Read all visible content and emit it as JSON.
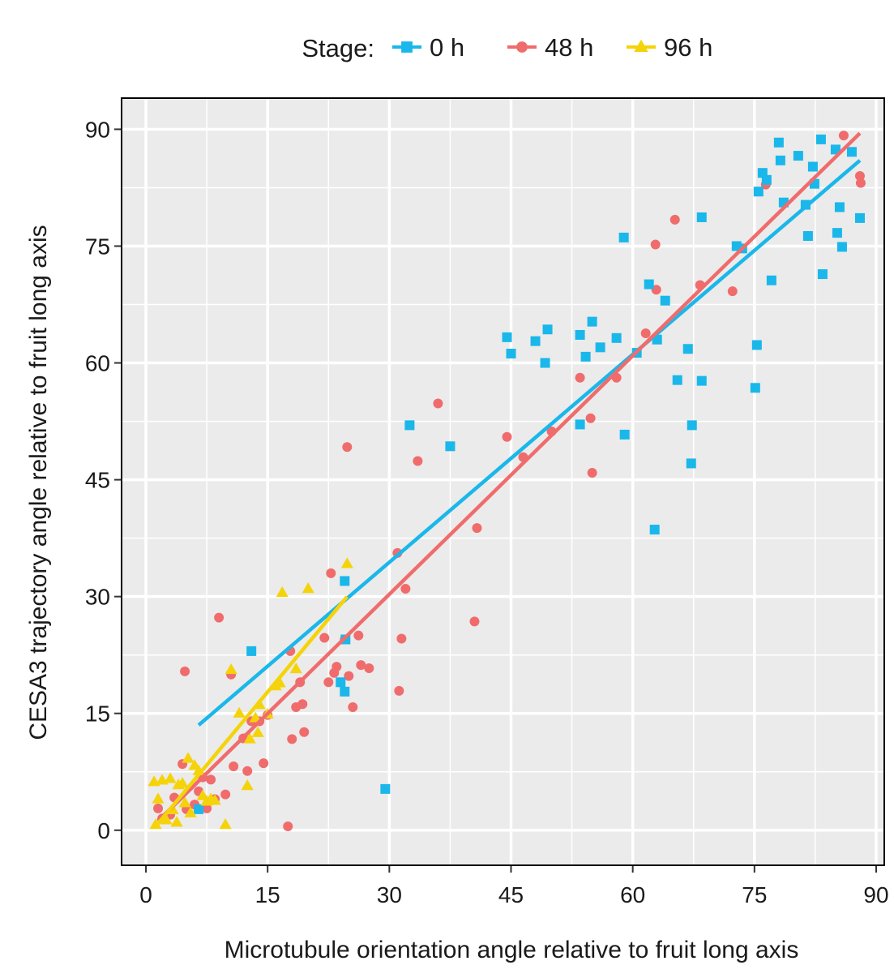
{
  "chart_data": {
    "type": "scatter",
    "xlabel": "Microtubule orientation angle relative to fruit long axis",
    "ylabel": "CESA3 trajectory angle relative to fruit long axis",
    "xlim": [
      -3,
      91
    ],
    "ylim": [
      -4.5,
      94
    ],
    "xticks": [
      0,
      15,
      30,
      45,
      60,
      75,
      90
    ],
    "yticks": [
      0,
      15,
      30,
      45,
      60,
      75,
      90
    ],
    "grid": true,
    "legend": {
      "title": "Stage:",
      "position": "top"
    },
    "colors": {
      "panel_bg": "#ebebeb",
      "grid": "#ffffff"
    },
    "series": [
      {
        "name": "0 h",
        "color": "#1ab7ea",
        "marker": "square",
        "fit": [
          [
            6.5,
            13.5
          ],
          [
            88,
            86
          ]
        ],
        "points": [
          [
            6.5,
            2.7
          ],
          [
            13,
            23
          ],
          [
            24,
            19
          ],
          [
            24.5,
            17.8
          ],
          [
            24.6,
            24.5
          ],
          [
            24.5,
            32
          ],
          [
            29.5,
            5.3
          ],
          [
            32.5,
            52
          ],
          [
            37.5,
            49.3
          ],
          [
            44.5,
            63.3
          ],
          [
            45,
            61.2
          ],
          [
            48,
            62.8
          ],
          [
            49.5,
            64.3
          ],
          [
            49.2,
            60
          ],
          [
            53.5,
            63.6
          ],
          [
            53.5,
            52.1
          ],
          [
            54.2,
            60.8
          ],
          [
            55,
            65.3
          ],
          [
            56,
            62
          ],
          [
            58,
            63.2
          ],
          [
            59,
            50.8
          ],
          [
            58.9,
            76.1
          ],
          [
            62,
            70.1
          ],
          [
            62.7,
            38.6
          ],
          [
            63,
            63
          ],
          [
            60.5,
            61.3
          ],
          [
            64,
            68
          ],
          [
            65.5,
            57.8
          ],
          [
            66.8,
            61.8
          ],
          [
            67.2,
            47.1
          ],
          [
            67.3,
            52
          ],
          [
            68.5,
            57.7
          ],
          [
            68.5,
            78.7
          ],
          [
            72.8,
            75
          ],
          [
            73.5,
            74.7
          ],
          [
            75.1,
            56.8
          ],
          [
            75.3,
            62.3
          ],
          [
            75.5,
            82
          ],
          [
            76,
            84.4
          ],
          [
            76.5,
            83.5
          ],
          [
            77.1,
            70.6
          ],
          [
            78,
            88.3
          ],
          [
            78.2,
            86
          ],
          [
            78.6,
            80.6
          ],
          [
            80.4,
            86.6
          ],
          [
            81.3,
            80.3
          ],
          [
            81.6,
            76.3
          ],
          [
            82.2,
            85.2
          ],
          [
            82.4,
            83
          ],
          [
            83.2,
            88.7
          ],
          [
            83.4,
            71.4
          ],
          [
            85,
            87.4
          ],
          [
            85.2,
            76.7
          ],
          [
            85.5,
            80
          ],
          [
            85.8,
            74.9
          ],
          [
            87,
            87.1
          ],
          [
            88,
            78.6
          ]
        ]
      },
      {
        "name": "48 h",
        "color": "#f06c6c",
        "marker": "circle",
        "fit": [
          [
            1.5,
            1.2
          ],
          [
            88,
            89.5
          ]
        ],
        "points": [
          [
            1.5,
            2.8
          ],
          [
            2,
            1.5
          ],
          [
            3,
            2
          ],
          [
            3.5,
            4.2
          ],
          [
            4.5,
            8.5
          ],
          [
            4.8,
            20.4
          ],
          [
            5,
            2.7
          ],
          [
            6,
            3.3
          ],
          [
            6.5,
            5
          ],
          [
            7,
            6.8
          ],
          [
            7.5,
            2.8
          ],
          [
            8,
            6.5
          ],
          [
            8.5,
            4
          ],
          [
            9,
            27.3
          ],
          [
            9.8,
            4.6
          ],
          [
            10.5,
            20
          ],
          [
            10.8,
            8.2
          ],
          [
            12,
            11.8
          ],
          [
            12.5,
            7.6
          ],
          [
            13,
            14
          ],
          [
            14,
            14
          ],
          [
            14.5,
            8.6
          ],
          [
            15,
            14.8
          ],
          [
            17.5,
            0.5
          ],
          [
            17.8,
            23
          ],
          [
            18,
            11.7
          ],
          [
            18.5,
            15.8
          ],
          [
            19,
            19
          ],
          [
            19.3,
            16.2
          ],
          [
            19.5,
            12.6
          ],
          [
            22,
            24.7
          ],
          [
            22.5,
            19
          ],
          [
            22.8,
            33
          ],
          [
            23.2,
            20.2
          ],
          [
            23.5,
            21
          ],
          [
            24.5,
            24.5
          ],
          [
            25,
            19.8
          ],
          [
            25.5,
            15.8
          ],
          [
            24.8,
            49.2
          ],
          [
            26.2,
            25
          ],
          [
            26.5,
            21.2
          ],
          [
            27.5,
            20.8
          ],
          [
            31,
            35.6
          ],
          [
            31.2,
            17.9
          ],
          [
            31.5,
            24.6
          ],
          [
            32,
            31
          ],
          [
            33.5,
            47.4
          ],
          [
            36,
            54.8
          ],
          [
            40.5,
            26.8
          ],
          [
            40.8,
            38.8
          ],
          [
            44.5,
            50.5
          ],
          [
            46.5,
            47.9
          ],
          [
            50,
            51.2
          ],
          [
            53.5,
            58.1
          ],
          [
            54.8,
            52.9
          ],
          [
            55,
            45.9
          ],
          [
            58,
            58.1
          ],
          [
            61.6,
            63.8
          ],
          [
            62.8,
            75.2
          ],
          [
            62.9,
            69.4
          ],
          [
            65.2,
            78.4
          ],
          [
            68.3,
            70
          ],
          [
            72.3,
            69.2
          ],
          [
            76.4,
            82.9
          ],
          [
            86,
            89.2
          ],
          [
            88,
            84
          ],
          [
            88.1,
            83.1
          ]
        ]
      },
      {
        "name": "96 h",
        "color": "#f5d30a",
        "marker": "triangle",
        "fit": [
          [
            1.2,
            0.5
          ],
          [
            24.8,
            30
          ]
        ],
        "points": [
          [
            1,
            6.2
          ],
          [
            1.2,
            0.7
          ],
          [
            1.5,
            4
          ],
          [
            2,
            6.4
          ],
          [
            2.5,
            1.3
          ],
          [
            3,
            6.6
          ],
          [
            3.3,
            2.6
          ],
          [
            3.8,
            1
          ],
          [
            4,
            5.8
          ],
          [
            4.5,
            6
          ],
          [
            4.8,
            3.5
          ],
          [
            5.2,
            9.2
          ],
          [
            5.5,
            2.2
          ],
          [
            6,
            8.3
          ],
          [
            6.5,
            7.6
          ],
          [
            7,
            4.4
          ],
          [
            7.5,
            3.7
          ],
          [
            8,
            4
          ],
          [
            8.5,
            3.8
          ],
          [
            9.8,
            0.7
          ],
          [
            10.5,
            20.6
          ],
          [
            11.5,
            15
          ],
          [
            12.5,
            5.7
          ],
          [
            12.8,
            11.7
          ],
          [
            13.5,
            14.4
          ],
          [
            13.8,
            12.5
          ],
          [
            14,
            16.1
          ],
          [
            15,
            14.9
          ],
          [
            16,
            18.5
          ],
          [
            16.5,
            18.9
          ],
          [
            16.8,
            30.5
          ],
          [
            18.5,
            20.7
          ],
          [
            20,
            31
          ],
          [
            24.8,
            34.2
          ]
        ]
      }
    ]
  }
}
